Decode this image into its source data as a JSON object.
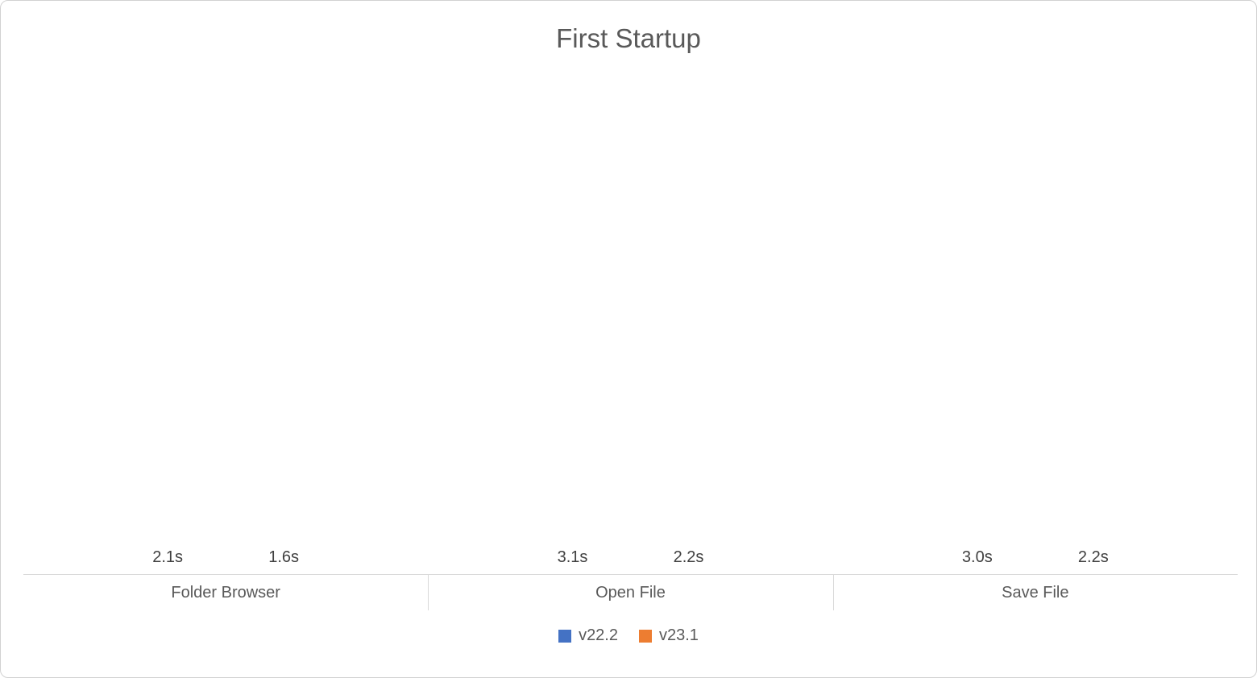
{
  "chart_data": {
    "type": "bar",
    "title": "First Startup",
    "categories": [
      "Folder Browser",
      "Open File",
      "Save File"
    ],
    "series": [
      {
        "name": "v22.2",
        "color": "#4472C4",
        "values": [
          2.1,
          3.1,
          3.0
        ],
        "labels": [
          "2.1s",
          "3.1s",
          "3.0s"
        ]
      },
      {
        "name": "v23.1",
        "color": "#ED7D31",
        "values": [
          1.6,
          2.2,
          2.2
        ],
        "labels": [
          "1.6s",
          "2.2s",
          "2.2s"
        ]
      }
    ],
    "unit": "s",
    "ylim": [
      0,
      4
    ],
    "grid": false,
    "y_axis_visible": false,
    "data_labels": true,
    "legend_position": "bottom",
    "colors": {
      "title_text": "#595959",
      "data_label_text": "#404040",
      "category_label_text": "#595959",
      "axis_line": "#d9d9d9",
      "chart_border": "#d2d2d2",
      "background": "#ffffff"
    }
  }
}
